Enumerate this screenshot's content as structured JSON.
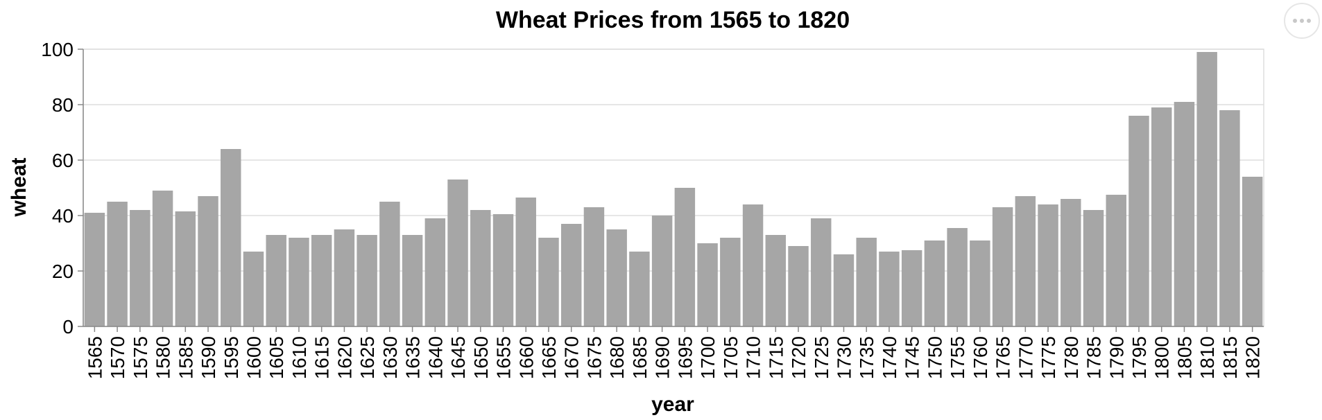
{
  "chart_data": {
    "type": "bar",
    "title": "Wheat Prices from 1565 to 1820",
    "xlabel": "year",
    "ylabel": "wheat",
    "ylim": [
      0,
      100
    ],
    "yticks": [
      0,
      20,
      40,
      60,
      80,
      100
    ],
    "grid": true,
    "bar_color": "#a6a6a6",
    "categories": [
      "1565",
      "1570",
      "1575",
      "1580",
      "1585",
      "1590",
      "1595",
      "1600",
      "1605",
      "1610",
      "1615",
      "1620",
      "1625",
      "1630",
      "1635",
      "1640",
      "1645",
      "1650",
      "1655",
      "1660",
      "1665",
      "1670",
      "1675",
      "1680",
      "1685",
      "1690",
      "1695",
      "1700",
      "1705",
      "1710",
      "1715",
      "1720",
      "1725",
      "1730",
      "1735",
      "1740",
      "1745",
      "1750",
      "1755",
      "1760",
      "1765",
      "1770",
      "1775",
      "1780",
      "1785",
      "1790",
      "1795",
      "1800",
      "1805",
      "1810",
      "1815",
      "1820"
    ],
    "values": [
      41,
      45,
      42,
      49,
      41.5,
      47,
      64,
      27,
      33,
      32,
      33,
      35,
      33,
      45,
      33,
      39,
      53,
      42,
      40.5,
      46.5,
      32,
      37,
      43,
      35,
      27,
      40,
      50,
      30,
      32,
      44,
      33,
      29,
      39,
      26,
      32,
      27,
      27.5,
      31,
      35.5,
      31,
      43,
      47,
      44,
      46,
      42,
      47.5,
      76,
      79,
      81,
      99,
      78,
      54
    ]
  },
  "menu": {
    "icon": "ellipsis-icon"
  }
}
